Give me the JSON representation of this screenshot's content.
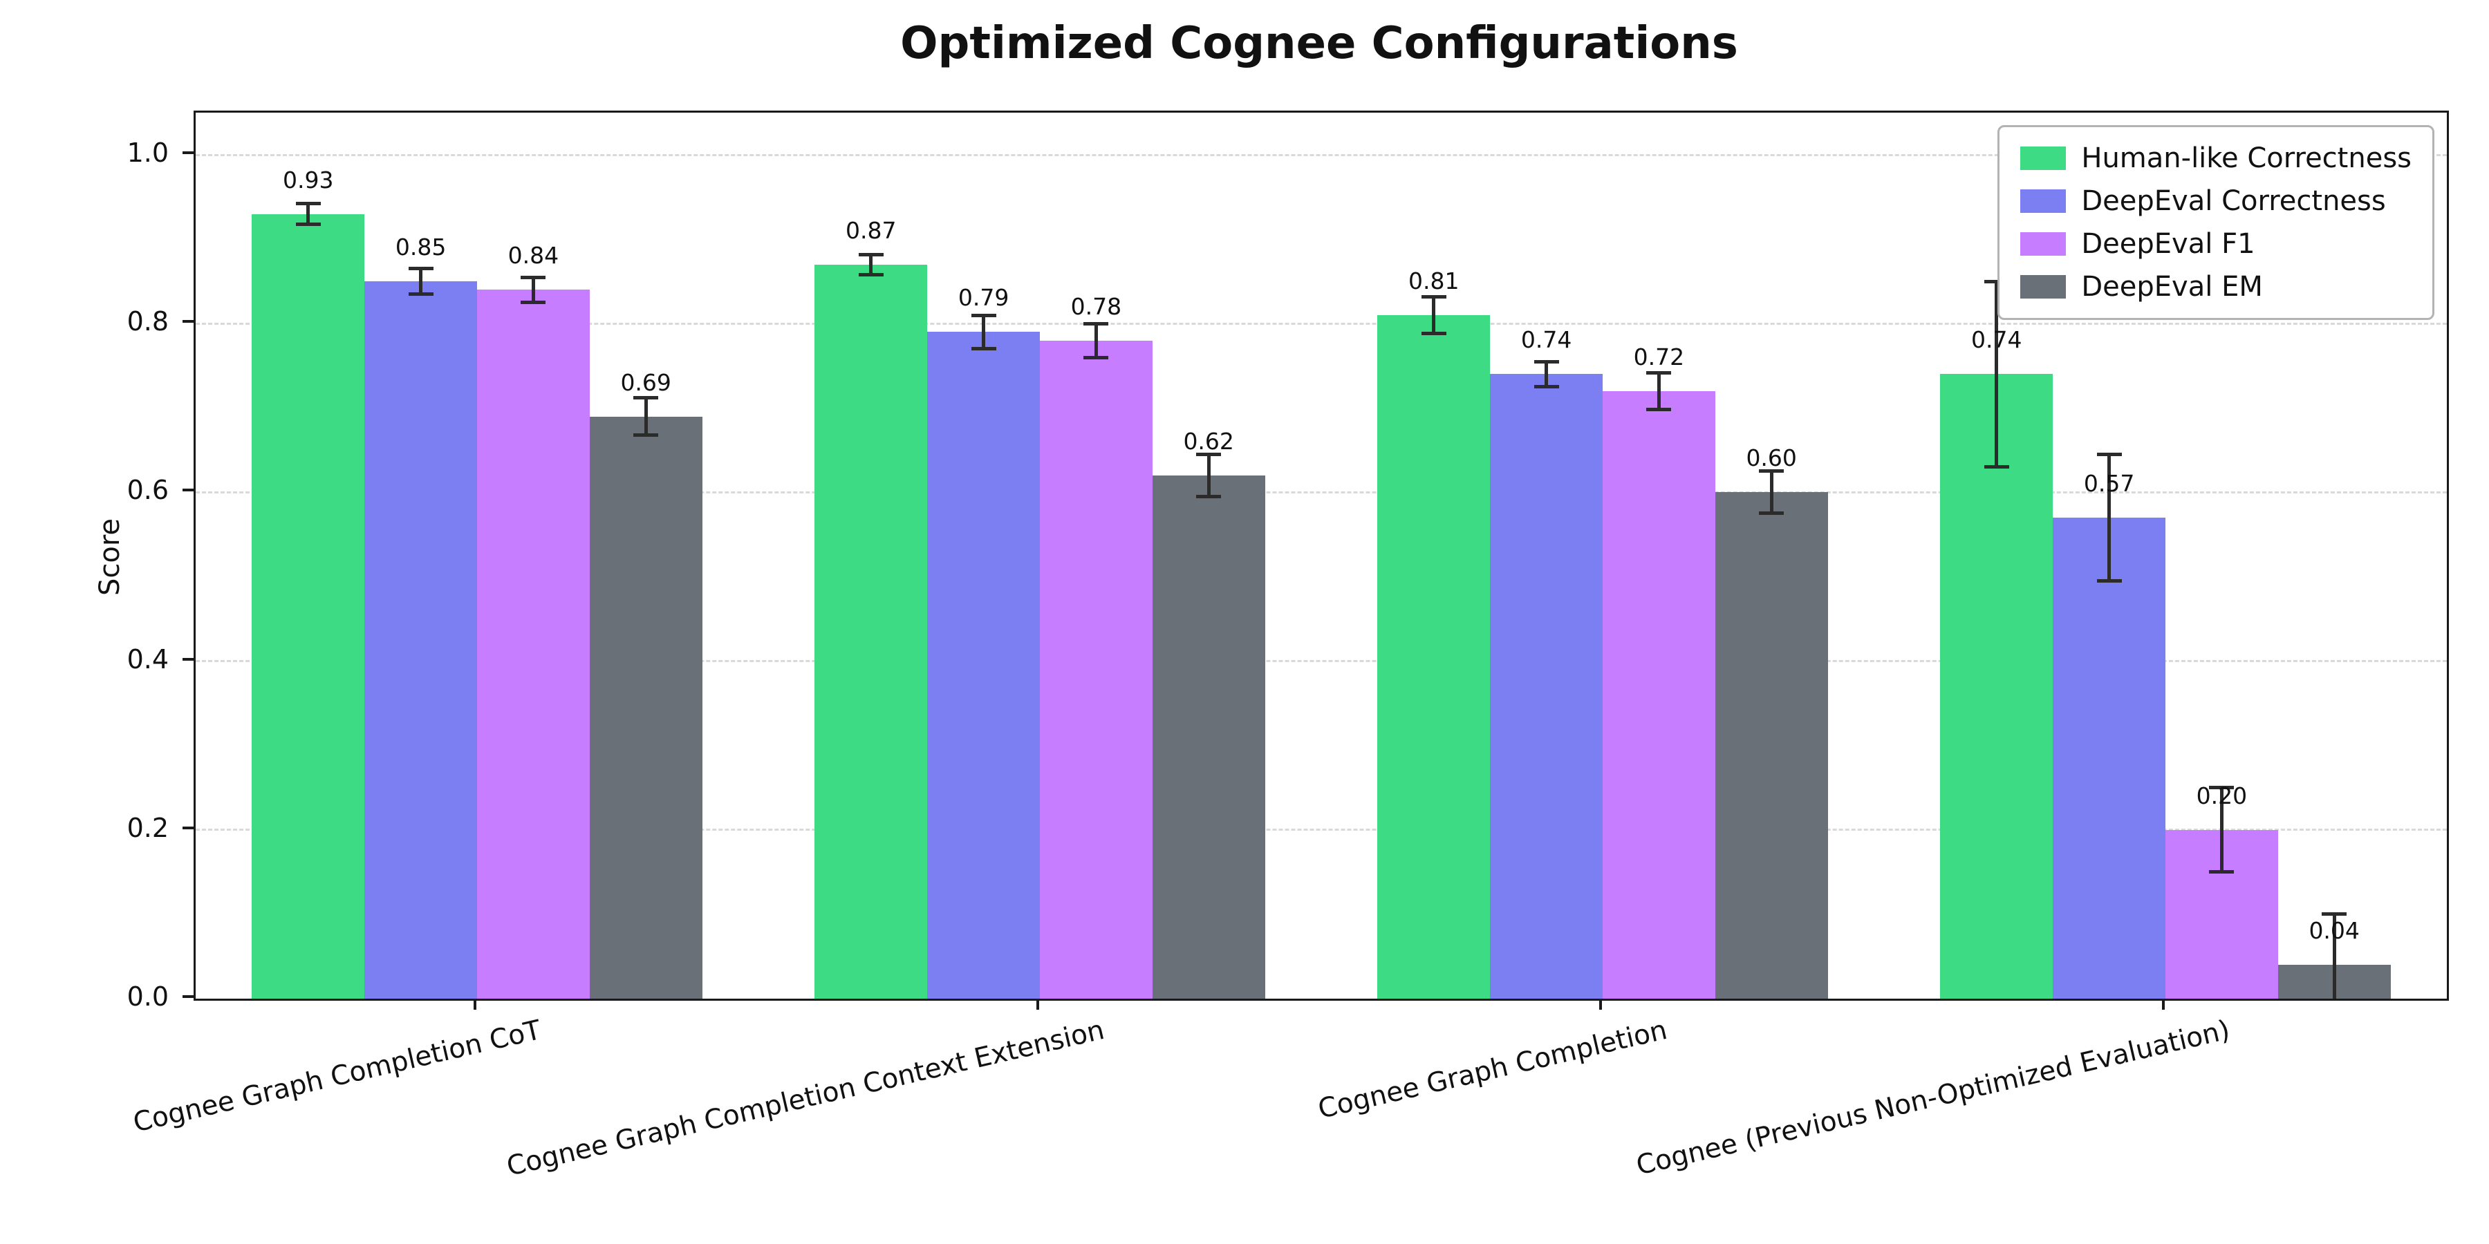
{
  "chart_data": {
    "type": "bar",
    "title": "Optimized Cognee Configurations",
    "xlabel": "",
    "ylabel": "Score",
    "ylim": [
      0,
      1.05
    ],
    "yticks": [
      0.0,
      0.2,
      0.4,
      0.6,
      0.8,
      1.0
    ],
    "grid": "horizontal-dashed",
    "legend_position": "upper right",
    "error_bar_color": "#2b2b2b",
    "categories": [
      "Cognee Graph Completion CoT",
      "Cognee Graph Completion Context Extension",
      "Cognee Graph Completion",
      "Cognee (Previous Non-Optimized Evaluation)"
    ],
    "series": [
      {
        "name": "Human-like Correctness",
        "color": "#3ddc84",
        "values": [
          0.93,
          0.87,
          0.81,
          0.74
        ],
        "errors": [
          0.012,
          0.012,
          0.022,
          0.11
        ],
        "bar_labels": [
          "0.93",
          "0.87",
          "0.81",
          "0.74"
        ]
      },
      {
        "name": "DeepEval Correctness",
        "color": "#7b7ff2",
        "values": [
          0.85,
          0.79,
          0.74,
          0.57
        ],
        "errors": [
          0.015,
          0.02,
          0.015,
          0.075
        ],
        "bar_labels": [
          "0.85",
          "0.79",
          "0.74",
          "0.57"
        ]
      },
      {
        "name": "DeepEval F1",
        "color": "#c77dff",
        "values": [
          0.84,
          0.78,
          0.72,
          0.2
        ],
        "errors": [
          0.015,
          0.02,
          0.022,
          0.05
        ],
        "bar_labels": [
          "0.84",
          "0.78",
          "0.72",
          "0.20"
        ]
      },
      {
        "name": "DeepEval EM",
        "color": "#697078",
        "values": [
          0.69,
          0.62,
          0.6,
          0.04
        ],
        "errors": [
          0.022,
          0.025,
          0.025,
          0.06
        ],
        "bar_labels": [
          "0.69",
          "0.62",
          "0.60",
          "0.04"
        ]
      }
    ]
  }
}
